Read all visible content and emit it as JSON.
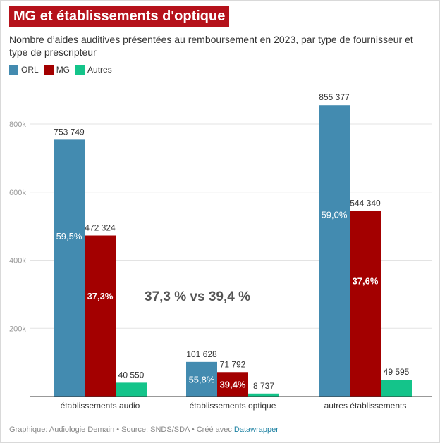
{
  "title": "MG et établissements d'optique",
  "subtitle": "Nombre d’aides auditives présentées au remboursement en 2023, par type de fournisseur et type de prescripteur",
  "colors": {
    "ORL": "#438bb0",
    "MG": "#a30000",
    "Autres": "#14c48a"
  },
  "chart_data": {
    "type": "bar",
    "title": "MG et établissements d'optique",
    "xlabel": "",
    "ylabel": "",
    "ylim": [
      0,
      900000
    ],
    "y_ticks": [
      200000,
      400000,
      600000,
      800000
    ],
    "y_tick_labels": [
      "200k",
      "400k",
      "600k",
      "800k"
    ],
    "categories": [
      "établissements audio",
      "établissements optique",
      "autres établissements"
    ],
    "series": [
      {
        "name": "ORL",
        "values": [
          753749,
          101628,
          855377
        ],
        "value_labels": [
          "753 749",
          "101 628",
          "855 377"
        ],
        "share_labels": [
          "59,5%",
          "55,8%",
          "59,0%"
        ]
      },
      {
        "name": "MG",
        "values": [
          472324,
          71792,
          544340
        ],
        "value_labels": [
          "472 324",
          "71 792",
          "544 340"
        ],
        "share_labels": [
          "37,3%",
          "39,4%",
          "37,6%"
        ]
      },
      {
        "name": "Autres",
        "values": [
          40550,
          8737,
          49595
        ],
        "value_labels": [
          "40 550",
          "8 737",
          "49 595"
        ],
        "share_labels": [
          "",
          "",
          ""
        ]
      }
    ],
    "annotation": "37,3 % vs 39,4 %",
    "legend_position": "top-left",
    "grid": true
  },
  "footer": {
    "prefix": "Graphique: Audiologie Demain • Source: SNDS/SDA • Créé avec ",
    "link": "Datawrapper"
  }
}
